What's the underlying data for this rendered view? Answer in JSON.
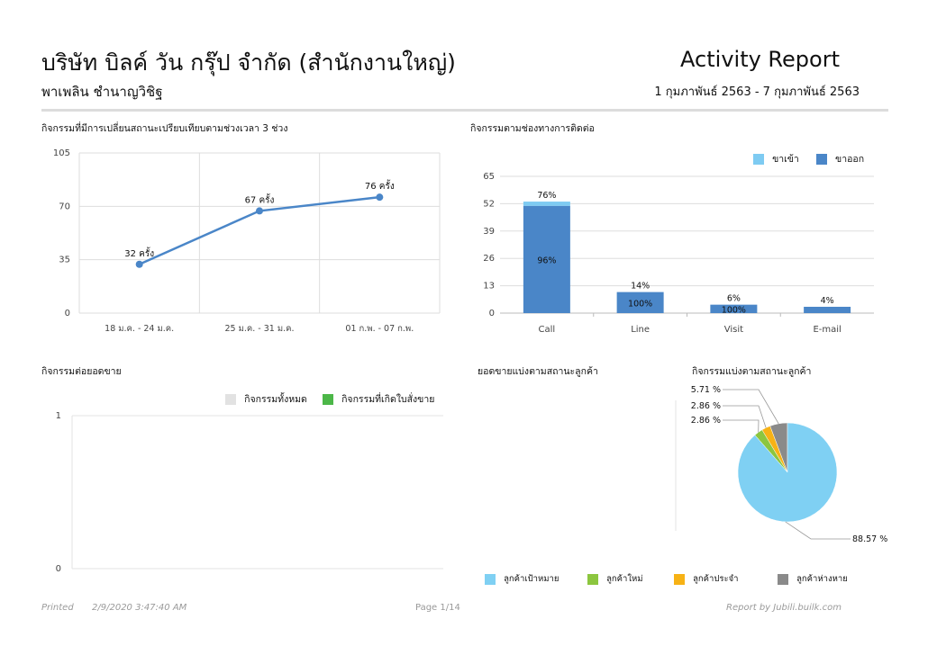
{
  "header": {
    "company": "บริษัท บิลค์ วัน กรุ๊ป จำกัด (สำนักงานใหญ่)",
    "person": "พาเพลิน ชำนาญวิชิฐ",
    "report_title": "Activity Report",
    "date_range": "1 กุมภาพันธ์ 2563 - 7 กุมภาพันธ์ 2563"
  },
  "sections": {
    "status_change": "กิจกรรมที่มีการเปลี่ยนสถานะเปรียบเทียบตามช่วงเวลา 3 ช่วง",
    "channel": "กิจกรรมตามช่องทางการติดต่อ",
    "per_sales": "กิจกรรมต่อยอดขาย",
    "sales_by_status": "ยอดขายแบ่งตามสถานะลูกค้า",
    "activity_by_status": "กิจกรรมแบ่งตามสถานะลูกค้า"
  },
  "chart_data": [
    {
      "type": "line",
      "categories": [
        "18 ม.ค. - 24 ม.ค.",
        "25 ม.ค. - 31 ม.ค.",
        "01 ก.พ. - 07 ก.พ."
      ],
      "values": [
        32,
        67,
        76
      ],
      "data_labels": [
        "32 ครั้ง",
        "67 ครั้ง",
        "76 ครั้ง"
      ],
      "yticks": [
        "0",
        "35",
        "70",
        "105"
      ],
      "ylim": [
        0,
        105
      ],
      "grid": true,
      "color": "#4a86c8"
    },
    {
      "type": "bar",
      "stacked": true,
      "categories": [
        "Call",
        "Line",
        "Visit",
        "E-mail"
      ],
      "series": [
        {
          "name": "ขาเข้า",
          "color": "#7ecbf2",
          "values": [
            2,
            0,
            0,
            0
          ]
        },
        {
          "name": "ขาออก",
          "color": "#4a86c8",
          "values": [
            51,
            10,
            4,
            3
          ],
          "inner_labels": [
            "96%",
            "100%",
            "100%",
            ""
          ]
        }
      ],
      "top_labels": [
        "76%",
        "14%",
        "6%",
        "4%"
      ],
      "yticks": [
        "0",
        "13",
        "26",
        "39",
        "52",
        "65"
      ],
      "ylim": [
        0,
        65
      ],
      "legend": "top-right"
    },
    {
      "type": "bar",
      "categories": [],
      "series": [
        {
          "name": "กิจกรรมทั้งหมด",
          "color": "#e2e2e2",
          "values": []
        },
        {
          "name": "กิจกรรมที่เกิดใบสั่งขาย",
          "color": "#4cb748",
          "values": []
        }
      ],
      "yticks": [
        "0",
        "1"
      ],
      "ylim": [
        0,
        1
      ],
      "legend": "top-right"
    },
    {
      "type": "pie",
      "labels": [
        "ลูกค้าเป้าหมาย",
        "ลูกค้าใหม่",
        "ลูกค้าประจำ",
        "ลูกค้าห่างหาย"
      ],
      "values": [
        88.57,
        2.86,
        2.86,
        5.71
      ],
      "value_labels": [
        "88.57 %",
        "2.86 %",
        "2.86 %",
        "5.71 %"
      ],
      "colors": [
        "#7fd0f3",
        "#8cc63f",
        "#f7b215",
        "#8a8a8a"
      ],
      "legend": "bottom"
    }
  ],
  "footer": {
    "printed_label": "Printed",
    "printed_time": "2/9/2020  3:47:40 AM",
    "page": "Page 1/14",
    "brand": "Report by  Jubili.builk.com"
  }
}
